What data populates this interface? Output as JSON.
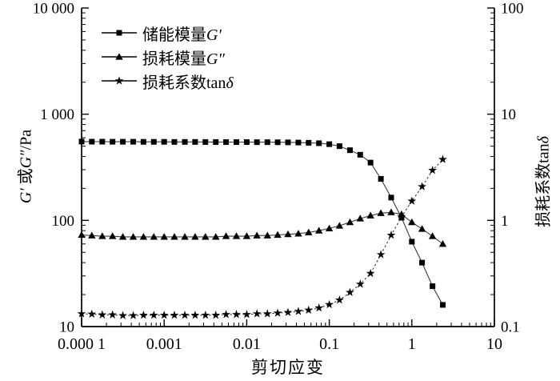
{
  "axes": {
    "x": {
      "label": "剪切应变"
    },
    "left": {
      "italic1": "G′",
      "text1": " 或",
      "italic2": "G″",
      "text2": "/Pa"
    },
    "right": {
      "text1": "损耗系数",
      "text2": "tan",
      "italic1": "δ"
    }
  },
  "legend": {
    "items": [
      {
        "cjk": "储能模量",
        "roman": "",
        "italic": "G′",
        "marker": "square"
      },
      {
        "cjk": "损耗模量",
        "roman": "",
        "italic": "G″",
        "marker": "triangle"
      },
      {
        "cjk": "损耗系数",
        "roman": "tan",
        "italic": "δ",
        "marker": "star"
      }
    ]
  },
  "chart_data": {
    "type": "line",
    "title": "",
    "xlabel": "剪切应变",
    "ylabel_left": "G′ 或G″/Pa",
    "ylabel_right": "损耗系数tanδ",
    "x_scale": "log",
    "y_scale": "log",
    "grid": false,
    "x_range": [
      0.0001,
      10
    ],
    "y_left_range": [
      10,
      10000
    ],
    "y_right_range": [
      0.1,
      100
    ],
    "x_ticks": {
      "values": [
        0.0001,
        0.001,
        0.01,
        0.1,
        1,
        10
      ],
      "labels": [
        "0.000 1",
        "0.001",
        "0.01",
        "0.1",
        "1",
        "10"
      ]
    },
    "y_left_ticks": {
      "values": [
        10,
        100,
        1000,
        10000
      ],
      "labels": [
        "10",
        "100",
        "1 000",
        "10 000"
      ]
    },
    "y_right_ticks": {
      "values": [
        0.1,
        1,
        10,
        100
      ],
      "labels": [
        "0.1",
        "1",
        "10",
        "100"
      ]
    },
    "x": [
      0.0001,
      0.000133,
      0.000178,
      0.000237,
      0.000316,
      0.000422,
      0.000562,
      0.00075,
      0.001,
      0.00133,
      0.00178,
      0.00237,
      0.00316,
      0.00422,
      0.00562,
      0.0075,
      0.01,
      0.0133,
      0.0178,
      0.0237,
      0.0316,
      0.0422,
      0.0562,
      0.075,
      0.1,
      0.133,
      0.178,
      0.237,
      0.316,
      0.422,
      0.562,
      0.75,
      1.0,
      1.33,
      1.78,
      2.37
    ],
    "series": [
      {
        "name": "储能模量G′",
        "axis": "left",
        "marker": "square",
        "line": "solid",
        "values": [
          552,
          551,
          551,
          550,
          550,
          550,
          549,
          549,
          549,
          548,
          548,
          548,
          547,
          547,
          546,
          546,
          546,
          545,
          545,
          544,
          543,
          541,
          538,
          533,
          522,
          500,
          458,
          415,
          350,
          246,
          164,
          106,
          63,
          40,
          24,
          16
        ]
      },
      {
        "name": "损耗模量G″",
        "axis": "left",
        "marker": "triangle",
        "line": "solid",
        "values": [
          73,
          72,
          71,
          71,
          70,
          70,
          70,
          70,
          70,
          70,
          70,
          70,
          70,
          70,
          71,
          71,
          71,
          72,
          72,
          73,
          74,
          75,
          77,
          80,
          84,
          89,
          96,
          104,
          111,
          117,
          119,
          114,
          96,
          83,
          71,
          60
        ]
      },
      {
        "name": "损耗系数tanδ",
        "axis": "right",
        "marker": "star",
        "line": "dashed",
        "values": [
          0.132,
          0.131,
          0.129,
          0.129,
          0.127,
          0.127,
          0.128,
          0.128,
          0.128,
          0.128,
          0.128,
          0.128,
          0.128,
          0.128,
          0.13,
          0.13,
          0.13,
          0.132,
          0.132,
          0.134,
          0.136,
          0.139,
          0.143,
          0.15,
          0.161,
          0.178,
          0.21,
          0.251,
          0.317,
          0.476,
          0.726,
          1.08,
          1.52,
          2.08,
          2.96,
          3.75
        ]
      }
    ]
  }
}
